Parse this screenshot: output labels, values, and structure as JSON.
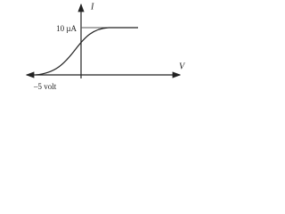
{
  "axes": {
    "y_label": "I",
    "x_label": "V"
  },
  "annotations": {
    "saturation_current": "10 µA",
    "voltage": "–5 volt"
  }
}
